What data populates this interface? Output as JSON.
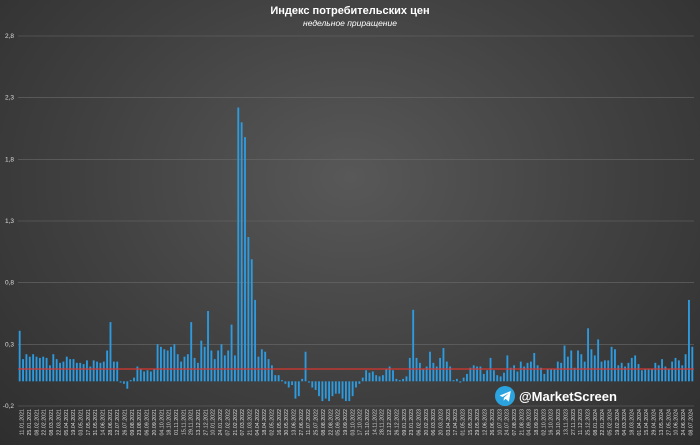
{
  "chart_data": {
    "type": "bar",
    "title": "Индекс потребительских цен",
    "subtitle": "недельное приращение",
    "ylim": [
      -0.2,
      2.8
    ],
    "yticks": [
      -0.2,
      0.3,
      0.8,
      1.3,
      1.8,
      2.3,
      2.8
    ],
    "ytick_labels": [
      "-0,2",
      "0,3",
      "0,8",
      "1,3",
      "1,8",
      "2,3",
      "2,8"
    ],
    "grid": true,
    "bar_color": "#2d9be0",
    "mean_line": {
      "value": 0.1,
      "color": "#d9372f"
    },
    "xtick_labels": [
      "11.01.2021",
      "25.01.2021",
      "08.02.2021",
      "22.02.2021",
      "08.03.2021",
      "22.03.2021",
      "05.04.2021",
      "19.04.2021",
      "03.05.2021",
      "17.05.2021",
      "31.05.2021",
      "14.06.2021",
      "28.06.2021",
      "12.07.2021",
      "26.07.2021",
      "09.08.2021",
      "23.08.2021",
      "06.09.2021",
      "20.09.2021",
      "04.10.2021",
      "18.10.2021",
      "01.11.2021",
      "15.11.2021",
      "29.11.2021",
      "13.12.2021",
      "27.12.2021",
      "10.01.2022",
      "24.01.2022",
      "07.02.2022",
      "21.02.2022",
      "07.03.2022",
      "21.03.2022",
      "04.04.2022",
      "18.04.2022",
      "02.05.2022",
      "16.05.2022",
      "30.05.2022",
      "13.06.2022",
      "27.06.2022",
      "11.07.2022",
      "25.07.2022",
      "08.08.2022",
      "22.08.2022",
      "05.09.2022",
      "19.09.2022",
      "03.10.2022",
      "17.10.2022",
      "31.10.2022",
      "14.11.2022",
      "28.11.2022",
      "12.12.2022",
      "26.12.2022",
      "09.01.2023",
      "23.01.2023",
      "06.02.2023",
      "20.02.2023",
      "06.03.2023",
      "20.03.2023",
      "03.04.2023",
      "17.04.2023",
      "01.05.2023",
      "15.05.2023",
      "29.05.2023",
      "12.06.2023",
      "26.06.2023",
      "10.07.2023",
      "24.07.2023",
      "07.08.2023",
      "21.08.2023",
      "04.09.2023",
      "18.09.2023",
      "02.10.2023",
      "16.10.2023",
      "30.10.2023",
      "13.11.2023",
      "27.11.2023",
      "11.12.2023",
      "25.12.2023",
      "08.01.2024",
      "22.01.2024",
      "05.02.2024",
      "19.02.2024",
      "04.03.2024",
      "18.03.2024",
      "01.04.2024",
      "15.04.2024",
      "29.04.2024",
      "13.05.2024",
      "27.05.2024",
      "10.06.2024",
      "24.06.2024",
      "08.07.2024"
    ],
    "values": [
      0.41,
      0.18,
      0.22,
      0.2,
      0.22,
      0.2,
      0.19,
      0.2,
      0.19,
      0.13,
      0.22,
      0.18,
      0.15,
      0.16,
      0.2,
      0.18,
      0.18,
      0.15,
      0.15,
      0.14,
      0.17,
      0.12,
      0.17,
      0.16,
      0.15,
      0.16,
      0.25,
      0.48,
      0.16,
      0.16,
      -0.01,
      -0.02,
      -0.06,
      0.01,
      0.03,
      0.12,
      0.1,
      0.08,
      0.09,
      0.08,
      0.1,
      0.3,
      0.28,
      0.26,
      0.25,
      0.28,
      0.3,
      0.22,
      0.16,
      0.2,
      0.22,
      0.48,
      0.19,
      0.15,
      0.33,
      0.28,
      0.57,
      0.25,
      0.18,
      0.25,
      0.3,
      0.21,
      0.25,
      0.46,
      0.21,
      2.22,
      2.1,
      1.98,
      1.17,
      0.99,
      0.66,
      0.2,
      0.26,
      0.24,
      0.18,
      0.13,
      0.05,
      0.05,
      0.01,
      -0.02,
      -0.05,
      -0.03,
      -0.14,
      -0.12,
      0.02,
      0.24,
      -0.01,
      -0.05,
      -0.07,
      -0.12,
      -0.16,
      -0.14,
      -0.16,
      -0.12,
      -0.1,
      -0.1,
      -0.14,
      -0.16,
      -0.16,
      -0.12,
      -0.05,
      -0.02,
      0.03,
      0.09,
      0.07,
      0.08,
      0.05,
      0.04,
      0.05,
      0.1,
      0.12,
      0.09,
      0.02,
      0.01,
      0.02,
      0.04,
      0.19,
      0.58,
      0.19,
      0.15,
      0.1,
      0.12,
      0.24,
      0.15,
      0.12,
      0.19,
      0.27,
      0.16,
      0.12,
      0.01,
      0.02,
      -0.01,
      0.03,
      0.06,
      0.11,
      0.13,
      0.12,
      0.12,
      0.06,
      0.09,
      0.19,
      0.09,
      0.05,
      0.04,
      0.07,
      0.21,
      0.11,
      0.13,
      0.08,
      0.16,
      0.12,
      0.15,
      0.16,
      0.23,
      0.13,
      0.11,
      0.06,
      0.1,
      0.1,
      0.1,
      0.16,
      0.15,
      0.29,
      0.2,
      0.25,
      0.11,
      0.25,
      0.22,
      0.16,
      0.43,
      0.26,
      0.21,
      0.34,
      0.16,
      0.17,
      0.17,
      0.28,
      0.26,
      0.13,
      0.15,
      0.12,
      0.15,
      0.19,
      0.21,
      0.14,
      0.09,
      0.1,
      0.1,
      0.1,
      0.15,
      0.13,
      0.18,
      0.12,
      0.1,
      0.16,
      0.19,
      0.17,
      0.13,
      0.22,
      0.66,
      0.28
    ]
  },
  "watermark": {
    "text": "@MarketScreen",
    "icon": "telegram-icon"
  }
}
